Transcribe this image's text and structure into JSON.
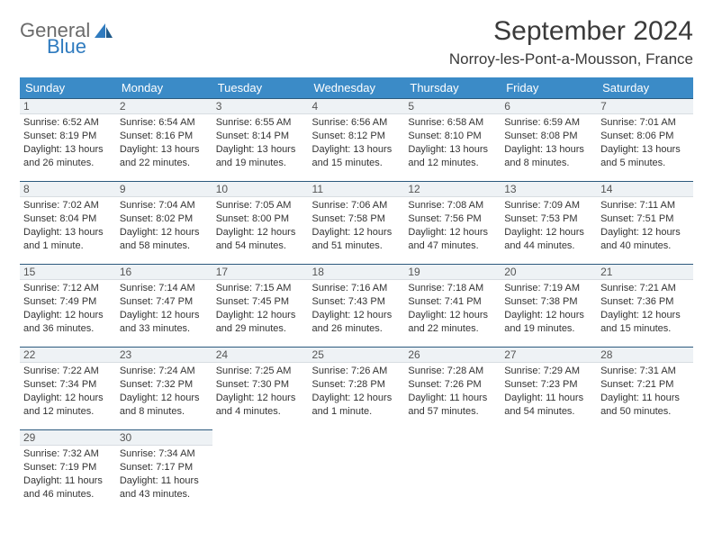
{
  "logo": {
    "text_general": "General",
    "text_blue": "Blue"
  },
  "header": {
    "month_title": "September 2024",
    "location": "Norroy-les-Pont-a-Mousson, France"
  },
  "calendar": {
    "week_header_bg": "#3b8bc7",
    "week_header_fg": "#ffffff",
    "daynum_bg": "#eef2f5",
    "daynum_border_top": "#2c5a7e",
    "weekdays": [
      "Sunday",
      "Monday",
      "Tuesday",
      "Wednesday",
      "Thursday",
      "Friday",
      "Saturday"
    ],
    "weeks": [
      [
        {
          "day": "1",
          "sunrise": "Sunrise: 6:52 AM",
          "sunset": "Sunset: 8:19 PM",
          "daylight1": "Daylight: 13 hours",
          "daylight2": "and 26 minutes."
        },
        {
          "day": "2",
          "sunrise": "Sunrise: 6:54 AM",
          "sunset": "Sunset: 8:16 PM",
          "daylight1": "Daylight: 13 hours",
          "daylight2": "and 22 minutes."
        },
        {
          "day": "3",
          "sunrise": "Sunrise: 6:55 AM",
          "sunset": "Sunset: 8:14 PM",
          "daylight1": "Daylight: 13 hours",
          "daylight2": "and 19 minutes."
        },
        {
          "day": "4",
          "sunrise": "Sunrise: 6:56 AM",
          "sunset": "Sunset: 8:12 PM",
          "daylight1": "Daylight: 13 hours",
          "daylight2": "and 15 minutes."
        },
        {
          "day": "5",
          "sunrise": "Sunrise: 6:58 AM",
          "sunset": "Sunset: 8:10 PM",
          "daylight1": "Daylight: 13 hours",
          "daylight2": "and 12 minutes."
        },
        {
          "day": "6",
          "sunrise": "Sunrise: 6:59 AM",
          "sunset": "Sunset: 8:08 PM",
          "daylight1": "Daylight: 13 hours",
          "daylight2": "and 8 minutes."
        },
        {
          "day": "7",
          "sunrise": "Sunrise: 7:01 AM",
          "sunset": "Sunset: 8:06 PM",
          "daylight1": "Daylight: 13 hours",
          "daylight2": "and 5 minutes."
        }
      ],
      [
        {
          "day": "8",
          "sunrise": "Sunrise: 7:02 AM",
          "sunset": "Sunset: 8:04 PM",
          "daylight1": "Daylight: 13 hours",
          "daylight2": "and 1 minute."
        },
        {
          "day": "9",
          "sunrise": "Sunrise: 7:04 AM",
          "sunset": "Sunset: 8:02 PM",
          "daylight1": "Daylight: 12 hours",
          "daylight2": "and 58 minutes."
        },
        {
          "day": "10",
          "sunrise": "Sunrise: 7:05 AM",
          "sunset": "Sunset: 8:00 PM",
          "daylight1": "Daylight: 12 hours",
          "daylight2": "and 54 minutes."
        },
        {
          "day": "11",
          "sunrise": "Sunrise: 7:06 AM",
          "sunset": "Sunset: 7:58 PM",
          "daylight1": "Daylight: 12 hours",
          "daylight2": "and 51 minutes."
        },
        {
          "day": "12",
          "sunrise": "Sunrise: 7:08 AM",
          "sunset": "Sunset: 7:56 PM",
          "daylight1": "Daylight: 12 hours",
          "daylight2": "and 47 minutes."
        },
        {
          "day": "13",
          "sunrise": "Sunrise: 7:09 AM",
          "sunset": "Sunset: 7:53 PM",
          "daylight1": "Daylight: 12 hours",
          "daylight2": "and 44 minutes."
        },
        {
          "day": "14",
          "sunrise": "Sunrise: 7:11 AM",
          "sunset": "Sunset: 7:51 PM",
          "daylight1": "Daylight: 12 hours",
          "daylight2": "and 40 minutes."
        }
      ],
      [
        {
          "day": "15",
          "sunrise": "Sunrise: 7:12 AM",
          "sunset": "Sunset: 7:49 PM",
          "daylight1": "Daylight: 12 hours",
          "daylight2": "and 36 minutes."
        },
        {
          "day": "16",
          "sunrise": "Sunrise: 7:14 AM",
          "sunset": "Sunset: 7:47 PM",
          "daylight1": "Daylight: 12 hours",
          "daylight2": "and 33 minutes."
        },
        {
          "day": "17",
          "sunrise": "Sunrise: 7:15 AM",
          "sunset": "Sunset: 7:45 PM",
          "daylight1": "Daylight: 12 hours",
          "daylight2": "and 29 minutes."
        },
        {
          "day": "18",
          "sunrise": "Sunrise: 7:16 AM",
          "sunset": "Sunset: 7:43 PM",
          "daylight1": "Daylight: 12 hours",
          "daylight2": "and 26 minutes."
        },
        {
          "day": "19",
          "sunrise": "Sunrise: 7:18 AM",
          "sunset": "Sunset: 7:41 PM",
          "daylight1": "Daylight: 12 hours",
          "daylight2": "and 22 minutes."
        },
        {
          "day": "20",
          "sunrise": "Sunrise: 7:19 AM",
          "sunset": "Sunset: 7:38 PM",
          "daylight1": "Daylight: 12 hours",
          "daylight2": "and 19 minutes."
        },
        {
          "day": "21",
          "sunrise": "Sunrise: 7:21 AM",
          "sunset": "Sunset: 7:36 PM",
          "daylight1": "Daylight: 12 hours",
          "daylight2": "and 15 minutes."
        }
      ],
      [
        {
          "day": "22",
          "sunrise": "Sunrise: 7:22 AM",
          "sunset": "Sunset: 7:34 PM",
          "daylight1": "Daylight: 12 hours",
          "daylight2": "and 12 minutes."
        },
        {
          "day": "23",
          "sunrise": "Sunrise: 7:24 AM",
          "sunset": "Sunset: 7:32 PM",
          "daylight1": "Daylight: 12 hours",
          "daylight2": "and 8 minutes."
        },
        {
          "day": "24",
          "sunrise": "Sunrise: 7:25 AM",
          "sunset": "Sunset: 7:30 PM",
          "daylight1": "Daylight: 12 hours",
          "daylight2": "and 4 minutes."
        },
        {
          "day": "25",
          "sunrise": "Sunrise: 7:26 AM",
          "sunset": "Sunset: 7:28 PM",
          "daylight1": "Daylight: 12 hours",
          "daylight2": "and 1 minute."
        },
        {
          "day": "26",
          "sunrise": "Sunrise: 7:28 AM",
          "sunset": "Sunset: 7:26 PM",
          "daylight1": "Daylight: 11 hours",
          "daylight2": "and 57 minutes."
        },
        {
          "day": "27",
          "sunrise": "Sunrise: 7:29 AM",
          "sunset": "Sunset: 7:23 PM",
          "daylight1": "Daylight: 11 hours",
          "daylight2": "and 54 minutes."
        },
        {
          "day": "28",
          "sunrise": "Sunrise: 7:31 AM",
          "sunset": "Sunset: 7:21 PM",
          "daylight1": "Daylight: 11 hours",
          "daylight2": "and 50 minutes."
        }
      ],
      [
        {
          "day": "29",
          "sunrise": "Sunrise: 7:32 AM",
          "sunset": "Sunset: 7:19 PM",
          "daylight1": "Daylight: 11 hours",
          "daylight2": "and 46 minutes."
        },
        {
          "day": "30",
          "sunrise": "Sunrise: 7:34 AM",
          "sunset": "Sunset: 7:17 PM",
          "daylight1": "Daylight: 11 hours",
          "daylight2": "and 43 minutes."
        },
        null,
        null,
        null,
        null,
        null
      ]
    ]
  }
}
